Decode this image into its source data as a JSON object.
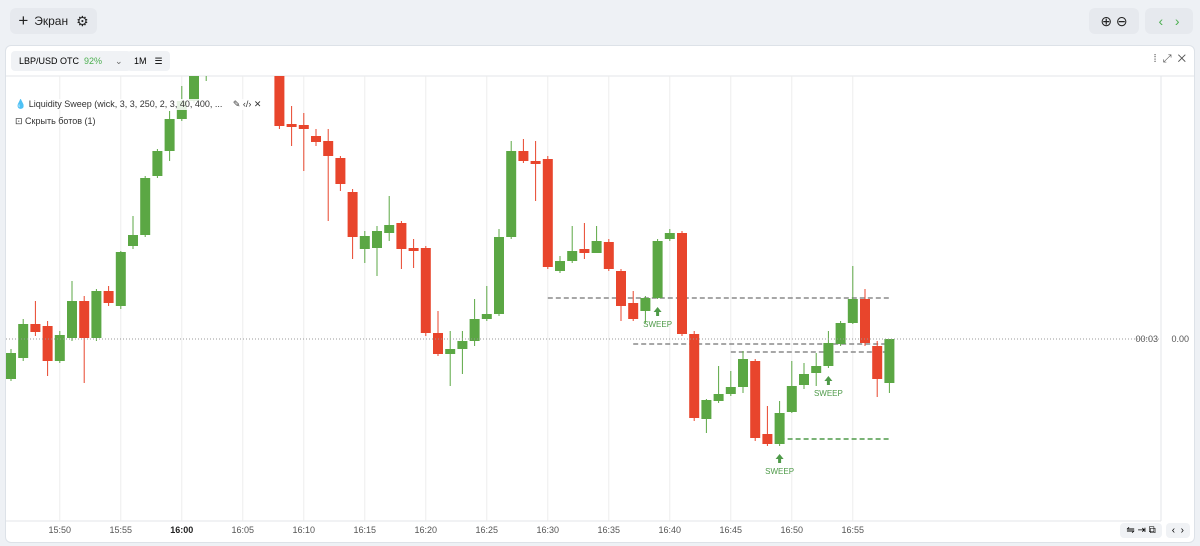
{
  "toolbar": {
    "screen_button": "Экран"
  },
  "panel": {
    "pair": "LBP/USD OTC",
    "payout": "92%",
    "timeframe": "1M",
    "indicator": "Liquidity Sweep (wick, 3, 3, 250, 2, 3, 40, 400, ...",
    "bots": "Скрыть ботов (1)"
  },
  "chart_data": {
    "type": "candlestick",
    "categories": [
      null,
      null,
      null,
      null,
      "15:50",
      null,
      null,
      null,
      null,
      "15:55",
      null,
      null,
      null,
      null,
      "16:00",
      null,
      null,
      null,
      null,
      "16:05",
      null,
      null,
      null,
      null,
      "16:10",
      null,
      null,
      null,
      null,
      "16:15",
      null,
      null,
      null,
      null,
      "16:20",
      null,
      null,
      null,
      null,
      "16:25",
      null,
      null,
      null,
      null,
      "16:30",
      null,
      null,
      null,
      null,
      "16:35",
      null,
      null,
      null,
      null,
      "16:40",
      null,
      null,
      null,
      null,
      "16:45",
      null,
      null,
      null,
      null,
      "16:50",
      null,
      null,
      null,
      null,
      "16:55",
      null,
      null,
      null
    ],
    "first_tick_label": "5",
    "open": [
      -0.4,
      -0.19,
      0.15,
      0.13,
      -0.22,
      0.01,
      0.38,
      0.01,
      0.48,
      0.33,
      0.93,
      1.04,
      1.63,
      1.88,
      2.2,
      2.38,
      2.66,
      2.83,
      2.93,
      2.88,
      2.98,
      2.83,
      2.78,
      2.15,
      2.14,
      2.03,
      1.98,
      1.81,
      1.47,
      0.9,
      0.91,
      1.06,
      1.16,
      0.91,
      0.91,
      0.06,
      -0.15,
      -0.1,
      -0.02,
      0.2,
      0.25,
      1.02,
      1.88,
      1.78,
      1.8,
      0.68,
      0.78,
      0.9,
      0.86,
      0.97,
      0.68,
      0.36,
      0.28,
      0.41,
      1.0,
      1.06,
      0.05,
      -0.8,
      -0.62,
      -0.55,
      -0.48,
      -0.22,
      -0.95,
      -1.05,
      -0.73,
      -0.46,
      -0.34,
      -0.27,
      -0.05,
      0.16,
      0.4,
      -0.07,
      -0.44
    ],
    "high": [
      -0.1,
      0.2,
      0.38,
      0.18,
      0.08,
      0.58,
      0.43,
      0.5,
      0.53,
      0.88,
      1.23,
      1.63,
      1.9,
      2.28,
      2.53,
      2.73,
      2.88,
      2.98,
      3.0,
      3.03,
      3.03,
      2.93,
      2.83,
      2.33,
      2.26,
      2.1,
      2.1,
      1.83,
      1.5,
      1.08,
      1.13,
      1.43,
      1.18,
      1.0,
      0.93,
      0.28,
      0.08,
      0.08,
      0.4,
      0.53,
      1.1,
      1.98,
      2.0,
      1.98,
      1.83,
      0.83,
      1.13,
      1.16,
      1.13,
      1.0,
      0.7,
      0.48,
      0.43,
      1.0,
      1.1,
      1.08,
      0.08,
      -0.6,
      -0.27,
      -0.32,
      -0.12,
      -0.2,
      -0.67,
      -0.62,
      -0.22,
      -0.24,
      -0.14,
      0.08,
      0.18,
      0.73,
      0.5,
      -0.02,
      0.0
    ],
    "low": [
      -0.42,
      -0.22,
      0.03,
      -0.37,
      -0.24,
      -0.02,
      -0.44,
      -0.02,
      0.33,
      0.3,
      0.9,
      1.02,
      1.61,
      1.78,
      2.18,
      2.36,
      2.58,
      2.76,
      2.8,
      2.78,
      2.76,
      2.68,
      2.1,
      1.93,
      1.68,
      1.93,
      1.18,
      1.48,
      0.8,
      0.76,
      0.63,
      0.98,
      0.7,
      0.71,
      0.03,
      -0.17,
      -0.47,
      -0.35,
      -0.07,
      0.18,
      0.23,
      1.0,
      1.76,
      1.38,
      0.7,
      0.66,
      0.76,
      0.8,
      0.86,
      0.68,
      0.18,
      0.18,
      0.16,
      0.4,
      0.98,
      0.03,
      -0.82,
      -0.94,
      -0.64,
      -0.57,
      -0.54,
      -1.02,
      -1.07,
      -1.07,
      -0.74,
      -0.5,
      -0.47,
      -0.29,
      -0.07,
      0.15,
      -0.07,
      -0.58,
      -0.54
    ],
    "close": [
      -0.14,
      0.15,
      0.07,
      -0.22,
      0.04,
      0.38,
      0.01,
      0.48,
      0.36,
      0.87,
      1.04,
      1.61,
      1.88,
      2.2,
      2.38,
      2.66,
      2.83,
      2.93,
      2.88,
      2.98,
      2.83,
      2.78,
      2.13,
      2.12,
      2.1,
      1.97,
      1.83,
      1.55,
      1.02,
      1.03,
      1.08,
      1.14,
      0.9,
      0.88,
      0.06,
      -0.15,
      -0.1,
      -0.02,
      0.2,
      0.25,
      1.02,
      1.88,
      1.78,
      1.75,
      0.72,
      0.78,
      0.88,
      0.86,
      0.98,
      0.7,
      0.33,
      0.2,
      0.41,
      0.98,
      1.06,
      0.05,
      -0.79,
      -0.61,
      -0.55,
      -0.48,
      -0.2,
      -0.99,
      -1.05,
      -0.74,
      -0.47,
      -0.35,
      -0.27,
      -0.04,
      0.16,
      0.4,
      -0.04,
      -0.4,
      0.0
    ],
    "up_color": "#5ba744",
    "down_color": "#e8452c",
    "ylim": [
      -1.82,
      2.63
    ],
    "grid": true,
    "current": {
      "value": 0,
      "label": "0.00"
    },
    "timer": "00:03",
    "levels": [
      {
        "value": 0.41,
        "color": "#8a8a8a"
      },
      {
        "value": -0.05,
        "color": "#8a8a8a"
      },
      {
        "value": -0.13,
        "color": "#8a8a8a"
      },
      {
        "value": -1.0,
        "color": "#4e9a48"
      }
    ],
    "sweeps": [
      "SWEEP",
      "SWEEP",
      "SWEEP"
    ],
    "sweep_color": "#4e9a48"
  }
}
